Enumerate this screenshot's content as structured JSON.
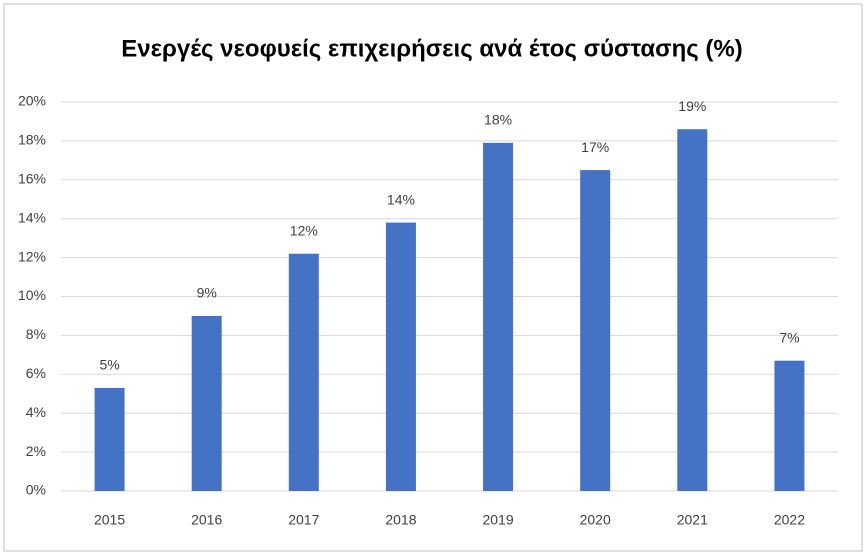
{
  "chart_data": {
    "type": "bar",
    "title": "Ενεργές νεοφυείς επιχειρήσεις ανά έτος σύστασης (%)",
    "categories": [
      "2015",
      "2016",
      "2017",
      "2018",
      "2019",
      "2020",
      "2021",
      "2022"
    ],
    "values": [
      5.3,
      9.0,
      12.2,
      13.8,
      17.9,
      16.5,
      18.6,
      6.7
    ],
    "value_labels": [
      "5%",
      "9%",
      "12%",
      "14%",
      "18%",
      "17%",
      "19%",
      "7%"
    ],
    "color": "#4472c4",
    "ylim": [
      0,
      20
    ],
    "yticks": [
      {
        "value": 0,
        "label": "0%"
      },
      {
        "value": 2,
        "label": "2%"
      },
      {
        "value": 4,
        "label": "4%"
      },
      {
        "value": 6,
        "label": "6%"
      },
      {
        "value": 8,
        "label": "8%"
      },
      {
        "value": 10,
        "label": "10%"
      },
      {
        "value": 12,
        "label": "12%"
      },
      {
        "value": 14,
        "label": "14%"
      },
      {
        "value": 16,
        "label": "16%"
      },
      {
        "value": 18,
        "label": "18%"
      },
      {
        "value": 20,
        "label": "20%"
      }
    ],
    "grid": true
  }
}
